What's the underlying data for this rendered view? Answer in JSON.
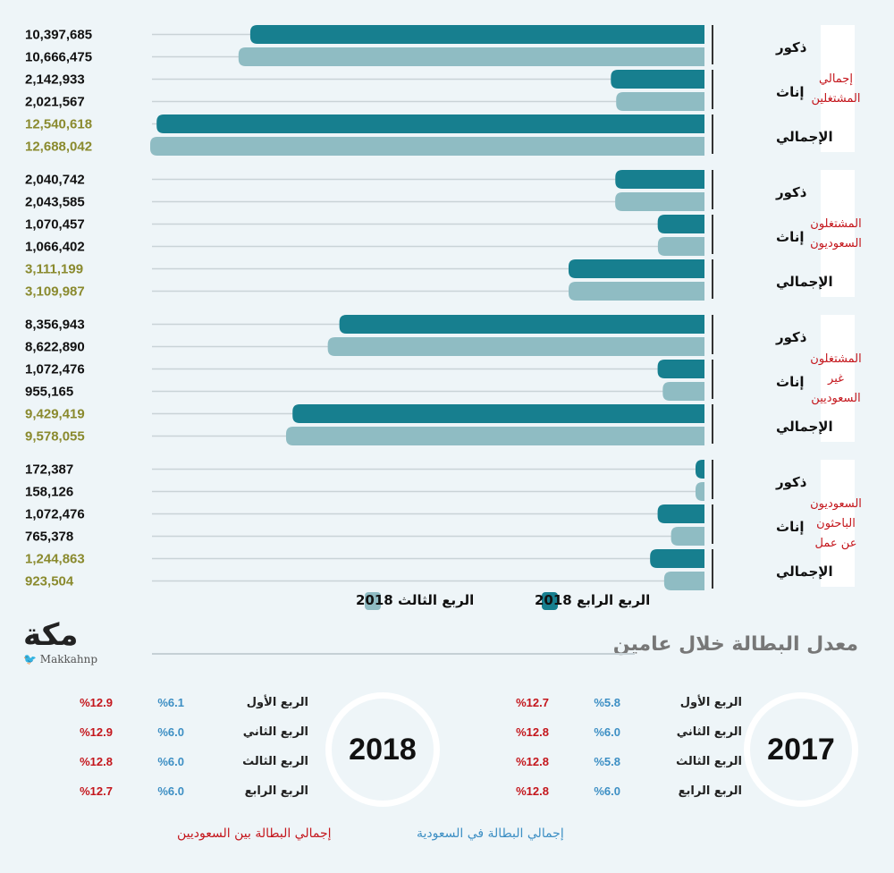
{
  "chart_data": {
    "type": "bar",
    "orientation": "horizontal",
    "series": [
      {
        "name": "الربع الرابع 2018",
        "color": "#177f8f"
      },
      {
        "name": "الربع الثالث 2018",
        "color": "#8fbcc3"
      }
    ],
    "groups": [
      {
        "title": "إجمالي المشتغلين",
        "rows": [
          {
            "label": "ذكور",
            "values": [
              10397685,
              10666475
            ],
            "display": [
              "10,397,685",
              "10,666,475"
            ]
          },
          {
            "label": "إناث",
            "values": [
              2142933,
              2021567
            ],
            "display": [
              "2,142,933",
              "2,021,567"
            ]
          },
          {
            "label": "الإجمالي",
            "values": [
              12540618,
              12688042
            ],
            "display": [
              "12,540,618",
              "12,688,042"
            ],
            "is_total": true
          }
        ]
      },
      {
        "title": "المشتغلون السعوديون",
        "rows": [
          {
            "label": "ذكور",
            "values": [
              2040742,
              2043585
            ],
            "display": [
              "2,040,742",
              "2,043,585"
            ]
          },
          {
            "label": "إناث",
            "values": [
              1070457,
              1066402
            ],
            "display": [
              "1,070,457",
              "1,066,402"
            ]
          },
          {
            "label": "الإجمالي",
            "values": [
              3111199,
              3109987
            ],
            "display": [
              "3,111,199",
              "3,109,987"
            ],
            "is_total": true
          }
        ]
      },
      {
        "title": "المشتغلون غير السعوديين",
        "rows": [
          {
            "label": "ذكور",
            "values": [
              8356943,
              8622890
            ],
            "display": [
              "8,356,943",
              "8,622,890"
            ]
          },
          {
            "label": "إناث",
            "values": [
              1072476,
              955165
            ],
            "display": [
              "1,072,476",
              "955,165"
            ]
          },
          {
            "label": "الإجمالي",
            "values": [
              9429419,
              9578055
            ],
            "display": [
              "9,429,419",
              "9,578,055"
            ],
            "is_total": true
          }
        ]
      },
      {
        "title": "السعوديون الباحثون عن عمل",
        "rows": [
          {
            "label": "ذكور",
            "values": [
              172387,
              158126
            ],
            "display": [
              "172,387",
              "158,126"
            ]
          },
          {
            "label": "إناث",
            "values": [
              1072476,
              765378
            ],
            "display": [
              "1,072,476",
              "765,378"
            ]
          },
          {
            "label": "الإجمالي",
            "values": [
              1244863,
              923504
            ],
            "display": [
              "1,244,863",
              "923,504"
            ],
            "is_total": true
          }
        ]
      }
    ],
    "colors": {
      "total_text": "#8a8a2e",
      "normal_text": "#111111",
      "group_title": "#c4161c"
    }
  },
  "logo": {
    "mark": "مكة",
    "handle": "Makkahnp",
    "bird": "🐦"
  },
  "unemployment": {
    "title": "معدل البطالة خلال عامين",
    "years": [
      {
        "year": "2017",
        "quarters": [
          {
            "name": "الربع الأول",
            "blue": "%5.8",
            "red": "%12.7"
          },
          {
            "name": "الربع الثاني",
            "blue": "%6.0",
            "red": "%12.8"
          },
          {
            "name": "الربع الثالث",
            "blue": "%5.8",
            "red": "%12.8"
          },
          {
            "name": "الربع الرابع",
            "blue": "%6.0",
            "red": "%12.8"
          }
        ]
      },
      {
        "year": "2018",
        "quarters": [
          {
            "name": "الربع الأول",
            "blue": "%6.1",
            "red": "%12.9"
          },
          {
            "name": "الربع الثاني",
            "blue": "%6.0",
            "red": "%12.9"
          },
          {
            "name": "الربع الثالث",
            "blue": "%6.0",
            "red": "%12.8"
          },
          {
            "name": "الربع الرابع",
            "blue": "%6.0",
            "red": "%12.7"
          }
        ]
      }
    ],
    "legend_blue": "إجمالي البطالة في السعودية",
    "legend_red": "إجمالي البطالة بين السعوديين",
    "blue_color": "#3d8fc4",
    "red_color": "#c4161c"
  }
}
